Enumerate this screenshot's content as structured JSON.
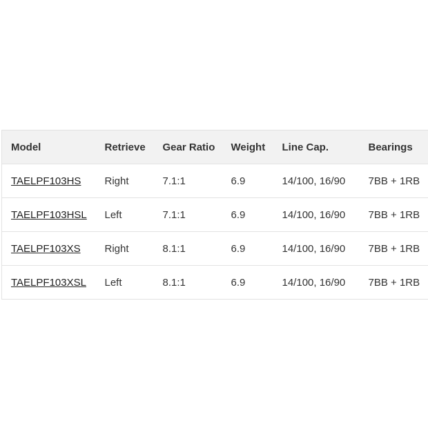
{
  "table": {
    "headers": [
      "Model",
      "Retrieve",
      "Gear Ratio",
      "Weight",
      "Line Cap.",
      "Bearings"
    ],
    "rows": [
      [
        "TAELPF103HS",
        "Right",
        "7.1:1",
        "6.9",
        "14/100, 16/90",
        "7BB + 1RB"
      ],
      [
        "TAELPF103HSL",
        "Left",
        "7.1:1",
        "6.9",
        "14/100, 16/90",
        "7BB + 1RB"
      ],
      [
        "TAELPF103XS",
        "Right",
        "8.1:1",
        "6.9",
        "14/100, 16/90",
        "7BB + 1RB"
      ],
      [
        "TAELPF103XSL",
        "Left",
        "8.1:1",
        "6.9",
        "14/100, 16/90",
        "7BB + 1RB"
      ]
    ]
  }
}
